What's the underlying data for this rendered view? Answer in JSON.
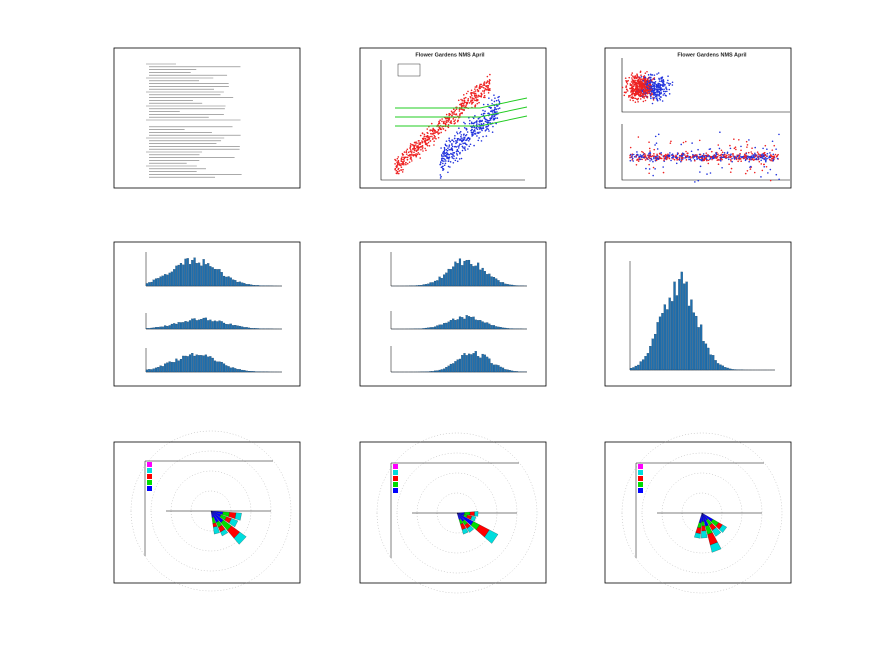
{
  "scatter_panel": {
    "title": "Flower Gardens NMS April"
  },
  "split_panel": {
    "title": "Flower Gardens NMS April"
  }
}
